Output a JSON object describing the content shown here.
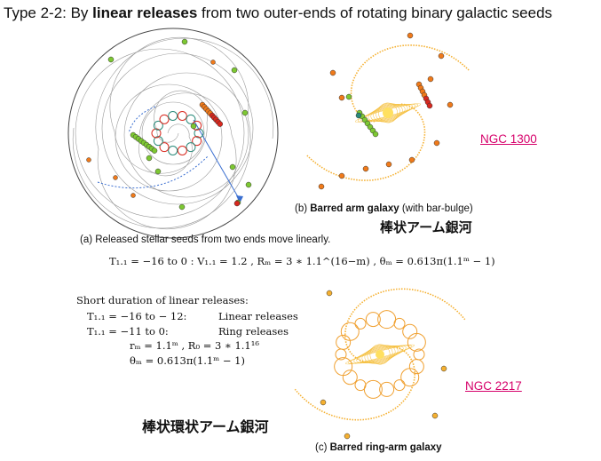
{
  "title": {
    "prefix": "Type 2-2: By ",
    "bold": "linear releases",
    "suffix": " from two outer-ends of rotating binary galactic seeds"
  },
  "panel_a": {
    "caption": "(a) Released stellar seeds from two ends move linearly.",
    "equation": "T₁.₁ = −16 to 0 :  V₁.₁ = 1.2 ,  Rₘ = 3 ∗ 1.1^(16−m) ,  θₘ = 0.613π(1.1ᵐ − 1)"
  },
  "panel_b": {
    "caption_prefix": "(b) ",
    "caption_bold": "Barred arm galaxy",
    "caption_suffix": " (with bar-bulge)",
    "jp_label": "棒状アーム銀河",
    "link": "NGC 1300"
  },
  "panel_c": {
    "caption_prefix": "(c) ",
    "caption_bold": "Barred ring-arm galaxy",
    "link": "NGC 2217",
    "jp_label": "棒状環状アーム銀河"
  },
  "short_duration": {
    "heading": "Short duration of linear releases:",
    "line1_left": "T₁.₁ = −16 to − 12:",
    "line1_right": "Linear releases",
    "line2_left": "T₁.₁ = −11 to 0:",
    "line2_right": "Ring releases",
    "line3": "rₘ = 1.1ᵐ ,  R₀ = 3 ∗ 1.1¹⁶",
    "line4": "θₘ = 0.613π(1.1ᵐ − 1)"
  },
  "colors": {
    "green": "#7dc832",
    "orange": "#f07a1a",
    "red": "#d8281e",
    "gold": "#f5b030",
    "teal": "#2a8a7a",
    "link": "#d6006a"
  }
}
